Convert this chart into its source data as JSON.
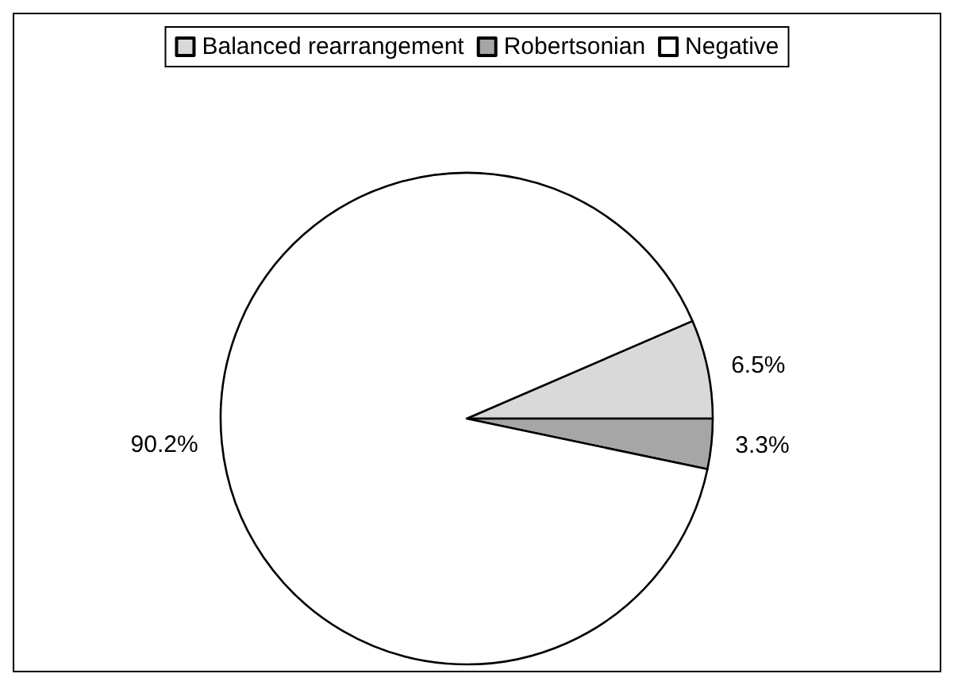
{
  "chart_data": {
    "type": "pie",
    "categories": [
      "Balanced rearrangement",
      "Robertsonian",
      "Negative"
    ],
    "values": [
      6.5,
      3.3,
      90.2
    ],
    "colors": [
      "#d9d9d9",
      "#a6a6a6",
      "#ffffff"
    ],
    "value_labels": [
      "6.5%",
      "3.3%",
      "90.2%"
    ],
    "legend": "top"
  }
}
